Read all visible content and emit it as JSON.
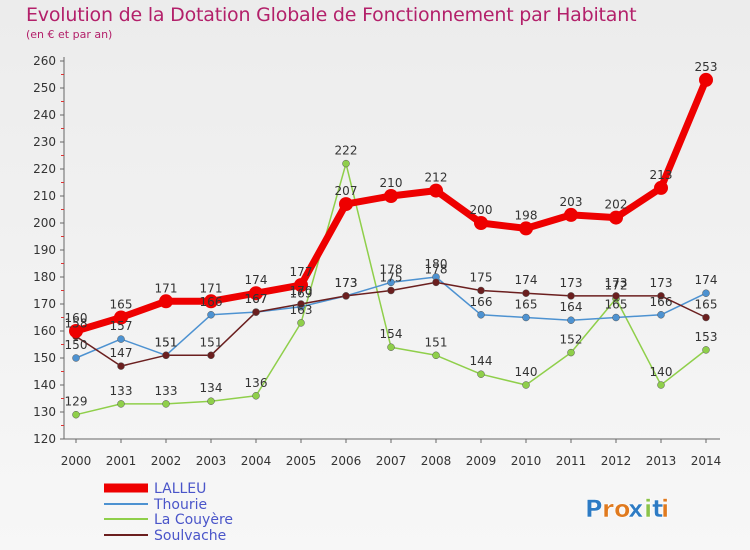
{
  "header": {
    "title": "Evolution de la Dotation Globale de Fonctionnement par Habitant",
    "subtitle": "(en € et par an)"
  },
  "brand": {
    "name": "Proxiti"
  },
  "chart_data": {
    "type": "line",
    "title": "Evolution de la Dotation Globale de Fonctionnement par Habitant",
    "subtitle": "(en € et par an)",
    "xlabel": "",
    "ylabel": "",
    "categories": [
      "2000",
      "2001",
      "2002",
      "2003",
      "2004",
      "2005",
      "2006",
      "2007",
      "2008",
      "2009",
      "2010",
      "2011",
      "2012",
      "2013",
      "2014"
    ],
    "ylim": [
      120,
      260
    ],
    "yticks": [
      120,
      130,
      140,
      150,
      160,
      170,
      180,
      190,
      200,
      210,
      220,
      230,
      240,
      250,
      260
    ],
    "grid": false,
    "legend_position": "bottom-left",
    "series": [
      {
        "name": "LALLEU",
        "color": "#ee0000",
        "values": [
          160,
          165,
          171,
          171,
          174,
          177,
          207,
          210,
          212,
          200,
          198,
          203,
          202,
          213,
          253
        ]
      },
      {
        "name": "Thourie",
        "color": "#4d92d1",
        "values": [
          150,
          157,
          151,
          166,
          167,
          169,
          173,
          178,
          180,
          166,
          165,
          164,
          165,
          166,
          174
        ]
      },
      {
        "name": "La Couyère",
        "color": "#8fcf4a",
        "values": [
          129,
          133,
          133,
          134,
          136,
          163,
          222,
          154,
          151,
          144,
          140,
          152,
          172,
          140,
          153
        ]
      },
      {
        "name": "Soulvache",
        "color": "#6b1f1f",
        "values": [
          158,
          147,
          151,
          151,
          167,
          170,
          173,
          175,
          178,
          175,
          174,
          173,
          173,
          173,
          165
        ]
      }
    ]
  }
}
